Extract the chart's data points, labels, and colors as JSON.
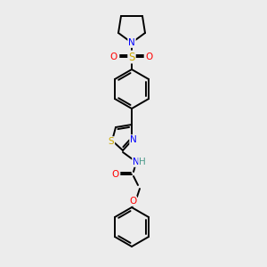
{
  "background_color": "#ececec",
  "bond_color": "#000000",
  "atom_colors": {
    "N": "#0000ff",
    "O": "#ff0000",
    "S": "#ccaa00",
    "C": "#000000",
    "H": "#4a9a8a"
  },
  "figsize": [
    3.0,
    3.0
  ],
  "dpi": 100
}
